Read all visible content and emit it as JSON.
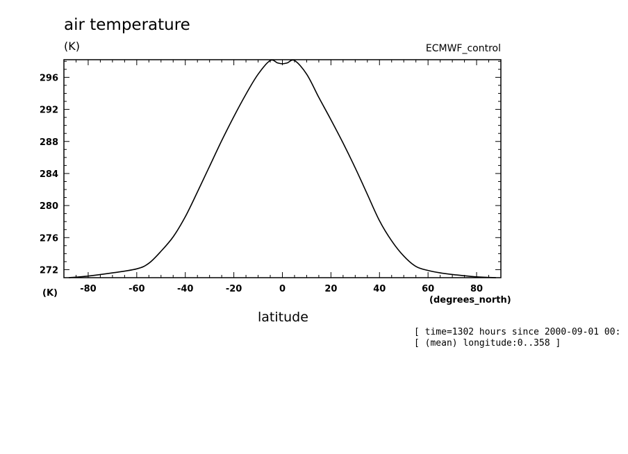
{
  "chart_data": {
    "type": "line",
    "title": "air temperature",
    "ylabel": "(K)",
    "yunit_bottom": "(K)",
    "source_label": "ECMWF_control",
    "xlabel": "latitude",
    "xunit": "(degrees_north)",
    "xlim": [
      -90,
      90
    ],
    "ylim": [
      271,
      298.2
    ],
    "xticks": [
      -80,
      -60,
      -40,
      -20,
      0,
      20,
      40,
      60,
      80
    ],
    "xtick_labels": [
      "-80",
      "-60",
      "-40",
      "-20",
      "0",
      "20",
      "40",
      "60",
      "80"
    ],
    "yticks": [
      272,
      276,
      280,
      284,
      288,
      292,
      296
    ],
    "ytick_labels": [
      "272",
      "276",
      "280",
      "284",
      "288",
      "292",
      "296"
    ],
    "grid": false,
    "annotations": [
      "[ time=1302 hours since 2000-09-01 00:",
      "[ (mean) longitude:0..358 ]"
    ],
    "series": [
      {
        "x": [
          -88,
          -80,
          -70,
          -60,
          -55,
          -50,
          -45,
          -40,
          -35,
          -30,
          -25,
          -20,
          -15,
          -10,
          -5,
          -2,
          0,
          2,
          5,
          10,
          15,
          20,
          25,
          30,
          35,
          40,
          45,
          50,
          55,
          60,
          65,
          70,
          80,
          88
        ],
        "y": [
          271.0,
          271.2,
          271.6,
          272.1,
          272.8,
          274.3,
          276.1,
          278.6,
          281.7,
          284.9,
          288.1,
          291.1,
          293.9,
          296.4,
          298.1,
          297.8,
          297.7,
          297.8,
          298.1,
          296.4,
          293.5,
          290.7,
          287.8,
          284.7,
          281.4,
          278.1,
          275.6,
          273.7,
          272.4,
          271.9,
          271.6,
          271.4,
          271.1,
          270.9
        ]
      }
    ]
  }
}
